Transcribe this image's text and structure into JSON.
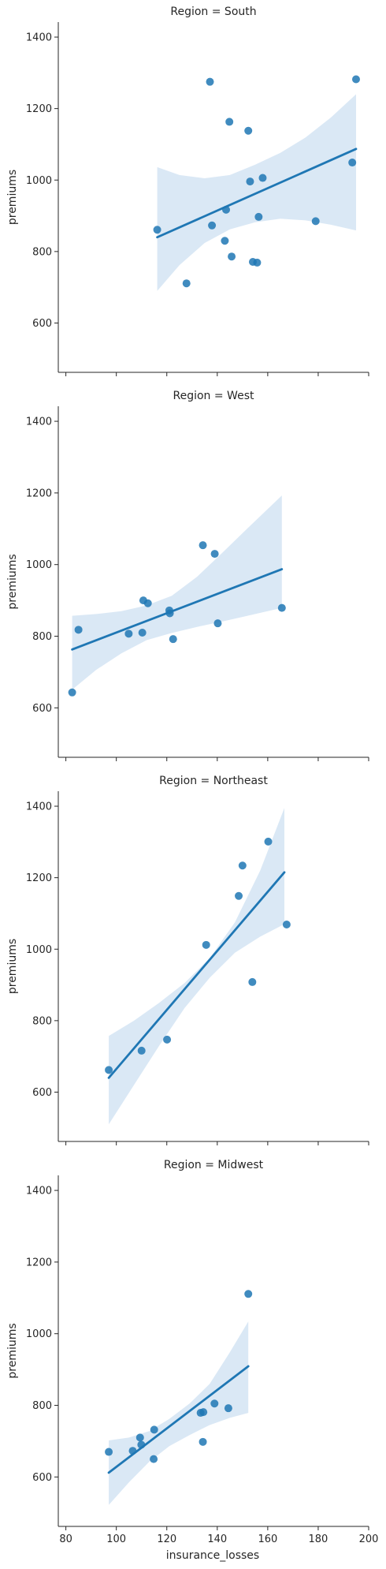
{
  "figure": {
    "xlabel": "insurance_losses",
    "ylabel": "premiums"
  },
  "colors": {
    "point": "#1f77b4",
    "line": "#1f77b4",
    "band": "#c6dbef",
    "axis": "#262626"
  },
  "chart_data": [
    {
      "type": "scatter",
      "title": "Region = South",
      "xlabel": "",
      "ylabel": "premiums",
      "xlim": [
        77,
        200
      ],
      "ylim": [
        462,
        1442
      ],
      "yticks": [
        600,
        800,
        1000,
        1200,
        1400
      ],
      "xticks": [
        80,
        100,
        120,
        140,
        160,
        180,
        200
      ],
      "show_xtick_labels": false,
      "points": [
        {
          "x": 137.1,
          "y": 1275
        },
        {
          "x": 195.0,
          "y": 1282
        },
        {
          "x": 144.8,
          "y": 1163
        },
        {
          "x": 152.3,
          "y": 1138
        },
        {
          "x": 193.5,
          "y": 1049
        },
        {
          "x": 158.0,
          "y": 1006
        },
        {
          "x": 153.0,
          "y": 996
        },
        {
          "x": 143.5,
          "y": 917
        },
        {
          "x": 156.4,
          "y": 897
        },
        {
          "x": 179.0,
          "y": 885
        },
        {
          "x": 137.9,
          "y": 873
        },
        {
          "x": 116.2,
          "y": 861
        },
        {
          "x": 143.0,
          "y": 830
        },
        {
          "x": 145.7,
          "y": 786
        },
        {
          "x": 154.1,
          "y": 771
        },
        {
          "x": 155.8,
          "y": 769
        },
        {
          "x": 127.8,
          "y": 711
        }
      ],
      "regression": {
        "x": [
          116.2,
          195.0
        ],
        "y": [
          840,
          1087
        ]
      },
      "ci": {
        "x": [
          116.2,
          125,
          135,
          145,
          155,
          165,
          175,
          185,
          195.0
        ],
        "lower": [
          690,
          762,
          824,
          862,
          882,
          892,
          887,
          875,
          859
        ],
        "upper": [
          1036,
          1014,
          1005,
          1014,
          1043,
          1076,
          1119,
          1175,
          1240
        ]
      }
    },
    {
      "type": "scatter",
      "title": "Region = West",
      "xlabel": "",
      "ylabel": "premiums",
      "xlim": [
        77,
        200
      ],
      "ylim": [
        462,
        1442
      ],
      "yticks": [
        600,
        800,
        1000,
        1200,
        1400
      ],
      "xticks": [
        80,
        100,
        120,
        140,
        160,
        180,
        200
      ],
      "show_xtick_labels": false,
      "points": [
        {
          "x": 82.5,
          "y": 643
        },
        {
          "x": 85.0,
          "y": 818
        },
        {
          "x": 104.9,
          "y": 807
        },
        {
          "x": 110.3,
          "y": 810
        },
        {
          "x": 110.7,
          "y": 900
        },
        {
          "x": 112.5,
          "y": 892
        },
        {
          "x": 121.0,
          "y": 872
        },
        {
          "x": 121.2,
          "y": 864
        },
        {
          "x": 122.5,
          "y": 792
        },
        {
          "x": 134.3,
          "y": 1054
        },
        {
          "x": 139.0,
          "y": 1030
        },
        {
          "x": 140.2,
          "y": 836
        },
        {
          "x": 165.6,
          "y": 879
        }
      ],
      "regression": {
        "x": [
          82.5,
          165.6
        ],
        "y": [
          763,
          987
        ]
      },
      "ci": {
        "x": [
          82.5,
          92,
          102,
          112,
          122,
          132,
          142,
          152,
          165.6
        ],
        "lower": [
          651,
          706,
          752,
          789,
          809,
          826,
          841,
          857,
          879
        ],
        "upper": [
          857,
          862,
          870,
          886,
          913,
          966,
          1033,
          1101,
          1193
        ]
      }
    },
    {
      "type": "scatter",
      "title": "Region = Northeast",
      "xlabel": "",
      "ylabel": "premiums",
      "xlim": [
        77,
        200
      ],
      "ylim": [
        462,
        1442
      ],
      "yticks": [
        600,
        800,
        1000,
        1200,
        1400
      ],
      "xticks": [
        80,
        100,
        120,
        140,
        160,
        180,
        200
      ],
      "show_xtick_labels": false,
      "points": [
        {
          "x": 97.0,
          "y": 662
        },
        {
          "x": 110.0,
          "y": 716
        },
        {
          "x": 120.1,
          "y": 747
        },
        {
          "x": 135.6,
          "y": 1012
        },
        {
          "x": 148.5,
          "y": 1149
        },
        {
          "x": 150.0,
          "y": 1234
        },
        {
          "x": 153.9,
          "y": 908
        },
        {
          "x": 160.2,
          "y": 1301
        },
        {
          "x": 167.5,
          "y": 1069
        }
      ],
      "regression": {
        "x": [
          97.0,
          166.6
        ],
        "y": [
          640,
          1215
        ]
      },
      "ci": {
        "x": [
          97.0,
          107,
          117,
          127,
          137,
          147,
          157,
          166.6
        ],
        "lower": [
          510,
          620,
          730,
          835,
          920,
          990,
          1035,
          1070
        ],
        "upper": [
          757,
          800,
          850,
          905,
          975,
          1075,
          1220,
          1395
        ]
      }
    },
    {
      "type": "scatter",
      "title": "Region = Midwest",
      "xlabel": "insurance_losses",
      "ylabel": "premiums",
      "xlim": [
        77,
        200
      ],
      "ylim": [
        462,
        1442
      ],
      "yticks": [
        600,
        800,
        1000,
        1200,
        1400
      ],
      "xticks": [
        80,
        100,
        120,
        140,
        160,
        180,
        200
      ],
      "show_xtick_labels": true,
      "points": [
        {
          "x": 97.0,
          "y": 670
        },
        {
          "x": 106.5,
          "y": 673
        },
        {
          "x": 109.4,
          "y": 710
        },
        {
          "x": 109.9,
          "y": 690
        },
        {
          "x": 114.8,
          "y": 650
        },
        {
          "x": 115.0,
          "y": 732
        },
        {
          "x": 133.4,
          "y": 779
        },
        {
          "x": 134.3,
          "y": 698
        },
        {
          "x": 134.5,
          "y": 781
        },
        {
          "x": 138.9,
          "y": 805
        },
        {
          "x": 144.4,
          "y": 792
        },
        {
          "x": 152.3,
          "y": 1111
        }
      ],
      "regression": {
        "x": [
          97.0,
          152.3
        ],
        "y": [
          612,
          909
        ]
      },
      "ci": {
        "x": [
          97.0,
          105,
          113,
          121,
          129,
          137,
          145,
          152.3
        ],
        "lower": [
          522,
          585,
          642,
          686,
          717,
          745,
          765,
          779
        ],
        "upper": [
          702,
          710,
          728,
          762,
          805,
          860,
          948,
          1034
        ]
      }
    }
  ]
}
